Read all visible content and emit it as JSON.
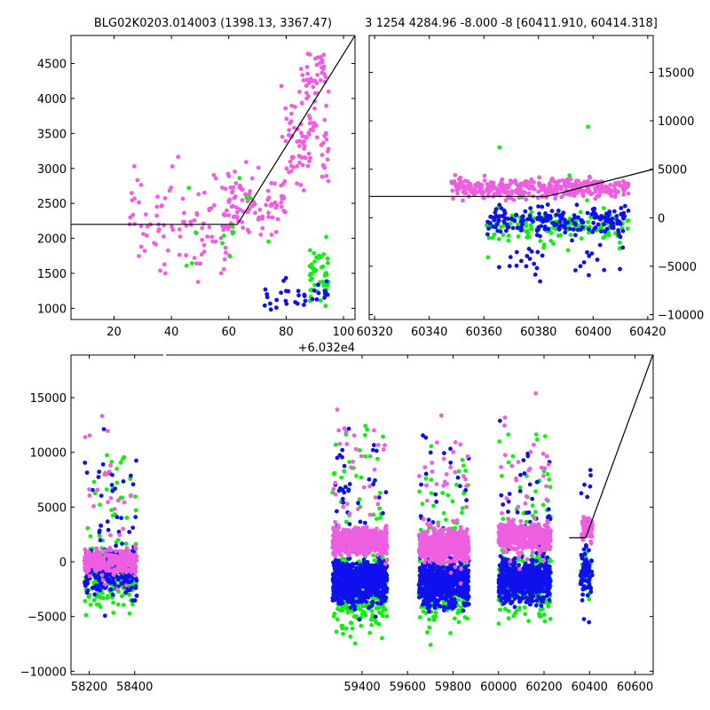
{
  "figure": {
    "title_left": "BLG02K0203.014003 (1398.13, 3367.47)",
    "title_right": "3 1254 4284.96 -8.000 -8 [60411.910, 60414.318]",
    "colors": {
      "magenta": "#ee5ee0",
      "blue": "#1010ee",
      "green": "#11ee11",
      "line": "#000000"
    }
  },
  "chart_data": [
    {
      "id": "zoom_left",
      "type": "scatter",
      "xlim": [
        5,
        104
      ],
      "ylim": [
        840,
        4900
      ],
      "x_offset_label": "+6.032e4",
      "xticks": [
        20,
        40,
        60,
        80,
        100
      ],
      "xtick_labels": [
        "20",
        "40",
        "60",
        "80",
        "100"
      ],
      "yticks": [
        1000,
        1500,
        2000,
        2500,
        3000,
        3500,
        4000,
        4500
      ],
      "ytick_labels": [
        "1000",
        "1500",
        "2000",
        "2500",
        "3000",
        "3500",
        "4000",
        "4500"
      ],
      "model_line": {
        "x": [
          5,
          63,
          104
        ],
        "y": [
          2200,
          2200,
          4900
        ]
      },
      "series": [
        {
          "color": "magenta",
          "clusters": [
            {
              "x": [
                25,
                63
              ],
              "y": [
                1150,
                3400
              ],
              "n": 110
            },
            {
              "x": [
                60,
                80
              ],
              "y": [
                1800,
                3200
              ],
              "n": 80
            },
            {
              "x": [
                78,
                95
              ],
              "y": [
                2500,
                4300
              ],
              "n": 90
            },
            {
              "x": [
                85,
                94
              ],
              "y": [
                3700,
                4900
              ],
              "n": 40
            }
          ]
        },
        {
          "color": "green",
          "clusters": [
            {
              "x": [
                88,
                95
              ],
              "y": [
                850,
                2150
              ],
              "n": 50
            },
            {
              "x": [
                45,
                76
              ],
              "y": [
                900,
                3100
              ],
              "n": 14
            }
          ]
        },
        {
          "color": "blue",
          "clusters": [
            {
              "x": [
                72,
                95
              ],
              "y": [
                850,
                1550
              ],
              "n": 35
            }
          ]
        }
      ]
    },
    {
      "id": "zoom_right",
      "type": "scatter",
      "xlim": [
        60318,
        60422
      ],
      "ylim": [
        -10500,
        18800
      ],
      "xticks": [
        60320,
        60340,
        60360,
        60380,
        60400,
        60420
      ],
      "xtick_labels": [
        "60320",
        "60340",
        "60360",
        "60380",
        "60400",
        "60420"
      ],
      "yticks": [
        -10000,
        -5000,
        0,
        5000,
        10000,
        15000
      ],
      "ytick_labels": [
        "−10000",
        "−5000",
        "0",
        "5000",
        "10000",
        "15000"
      ],
      "model_line": {
        "x": [
          60318,
          60383,
          60422
        ],
        "y": [
          2200,
          2200,
          5000
        ]
      },
      "series": [
        {
          "color": "magenta",
          "clusters": [
            {
              "x": [
                60348,
                60413
              ],
              "y": [
                1500,
                4500
              ],
              "n": 380
            }
          ]
        },
        {
          "color": "green",
          "clusters": [
            {
              "x": [
                60361,
                60413
              ],
              "y": [
                -3500,
                1500
              ],
              "n": 150
            },
            {
              "x": [
                60361,
                60413
              ],
              "y": [
                -8000,
                12000
              ],
              "n": 10
            }
          ]
        },
        {
          "color": "blue",
          "clusters": [
            {
              "x": [
                60361,
                60413
              ],
              "y": [
                -2500,
                2000
              ],
              "n": 190
            },
            {
              "x": [
                60361,
                60413
              ],
              "y": [
                -7000,
                -2000
              ],
              "n": 30
            }
          ]
        }
      ]
    },
    {
      "id": "full",
      "type": "scatter",
      "xlim": [
        58120,
        60680
      ],
      "ylim": [
        -10300,
        18900
      ],
      "xticks": [
        58200,
        58400,
        59400,
        59600,
        59800,
        60000,
        60200,
        60400,
        60600
      ],
      "xtick_labels": [
        "58200",
        "58400",
        "59400",
        "59600",
        "59800",
        "60000",
        "60200",
        "60400",
        "60600"
      ],
      "yticks": [
        -10000,
        -5000,
        0,
        5000,
        10000,
        15000
      ],
      "ytick_labels": [
        "−10000",
        "−5000",
        "0",
        "5000",
        "10000",
        "15000"
      ],
      "axis_break_x": 58530,
      "model_line": {
        "x": [
          60310,
          60383,
          60680
        ],
        "y": [
          2200,
          2200,
          19000
        ]
      },
      "series": [
        {
          "color": "green",
          "clusters": [
            {
              "x": [
                58180,
                58410
              ],
              "y": [
                -5500,
                2500
              ],
              "n": 170
            },
            {
              "x": [
                58180,
                58410
              ],
              "y": [
                -9500,
                17500
              ],
              "n": 40
            },
            {
              "x": [
                59270,
                59510
              ],
              "y": [
                -7500,
                2000
              ],
              "n": 260
            },
            {
              "x": [
                59270,
                59510
              ],
              "y": [
                -9500,
                18000
              ],
              "n": 60
            },
            {
              "x": [
                59650,
                59870
              ],
              "y": [
                -7000,
                2500
              ],
              "n": 200
            },
            {
              "x": [
                59650,
                59870
              ],
              "y": [
                -9500,
                15000
              ],
              "n": 50
            },
            {
              "x": [
                60000,
                60230
              ],
              "y": [
                -6500,
                2500
              ],
              "n": 210
            },
            {
              "x": [
                60000,
                60230
              ],
              "y": [
                -9000,
                17500
              ],
              "n": 55
            },
            {
              "x": [
                60360,
                60412
              ],
              "y": [
                -4000,
                2000
              ],
              "n": 30
            }
          ]
        },
        {
          "color": "blue",
          "clusters": [
            {
              "x": [
                58180,
                58410
              ],
              "y": [
                -4000,
                2000
              ],
              "n": 220
            },
            {
              "x": [
                58180,
                58410
              ],
              "y": [
                -9000,
                17000
              ],
              "n": 40
            },
            {
              "x": [
                59270,
                59510
              ],
              "y": [
                -4500,
                1000
              ],
              "n": 700
            },
            {
              "x": [
                59270,
                59510
              ],
              "y": [
                -9500,
                18000
              ],
              "n": 60
            },
            {
              "x": [
                59650,
                59870
              ],
              "y": [
                -5000,
                1000
              ],
              "n": 520
            },
            {
              "x": [
                59650,
                59870
              ],
              "y": [
                -10000,
                17000
              ],
              "n": 50
            },
            {
              "x": [
                60000,
                60230
              ],
              "y": [
                -4500,
                1000
              ],
              "n": 520
            },
            {
              "x": [
                60000,
                60230
              ],
              "y": [
                -9000,
                16000
              ],
              "n": 50
            },
            {
              "x": [
                60360,
                60412
              ],
              "y": [
                -4000,
                2000
              ],
              "n": 60
            },
            {
              "x": [
                60360,
                60412
              ],
              "y": [
                -9500,
                15500
              ],
              "n": 15
            }
          ]
        },
        {
          "color": "magenta",
          "clusters": [
            {
              "x": [
                58180,
                58410
              ],
              "y": [
                -1500,
                1500
              ],
              "n": 300
            },
            {
              "x": [
                58180,
                58410
              ],
              "y": [
                -8000,
                17500
              ],
              "n": 30
            },
            {
              "x": [
                59270,
                59510
              ],
              "y": [
                300,
                3500
              ],
              "n": 650
            },
            {
              "x": [
                59270,
                59510
              ],
              "y": [
                -5000,
                18500
              ],
              "n": 40
            },
            {
              "x": [
                59650,
                59870
              ],
              "y": [
                -500,
                3500
              ],
              "n": 500
            },
            {
              "x": [
                59650,
                59870
              ],
              "y": [
                -6000,
                18000
              ],
              "n": 40
            },
            {
              "x": [
                60000,
                60230
              ],
              "y": [
                500,
                4000
              ],
              "n": 500
            },
            {
              "x": [
                60000,
                60230
              ],
              "y": [
                -5000,
                18500
              ],
              "n": 40
            },
            {
              "x": [
                60365,
                60413
              ],
              "y": [
                1500,
                4500
              ],
              "n": 80
            }
          ]
        }
      ]
    }
  ]
}
